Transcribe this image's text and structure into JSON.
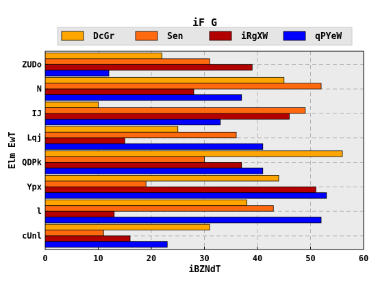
{
  "chart_data": {
    "type": "bar",
    "orientation": "horizontal",
    "title": "iF G",
    "xlabel": "iBZNdT",
    "ylabel": "Elm EwT",
    "xlim": [
      0,
      60
    ],
    "xticks": [
      0,
      10,
      20,
      30,
      40,
      50,
      60
    ],
    "grid": true,
    "legend_position": "top",
    "categories": [
      "ZUDo",
      "N",
      "IJ",
      "Lqj",
      "QDPk",
      "Ypx",
      "l",
      "cUnl"
    ],
    "series": [
      {
        "name": "DcGr",
        "color": "#ffa500",
        "values": [
          22,
          45,
          10,
          25,
          56,
          44,
          38,
          31
        ]
      },
      {
        "name": "Sen",
        "color": "#ff6a0e",
        "values": [
          31,
          52,
          49,
          36,
          30,
          19,
          43,
          11
        ]
      },
      {
        "name": "iRgXW",
        "color": "#b20000",
        "values": [
          39,
          28,
          46,
          15,
          37,
          51,
          13,
          16
        ]
      },
      {
        "name": "qPYeW",
        "color": "#0000ff",
        "values": [
          12,
          37,
          33,
          41,
          41,
          53,
          52,
          23
        ]
      }
    ]
  }
}
